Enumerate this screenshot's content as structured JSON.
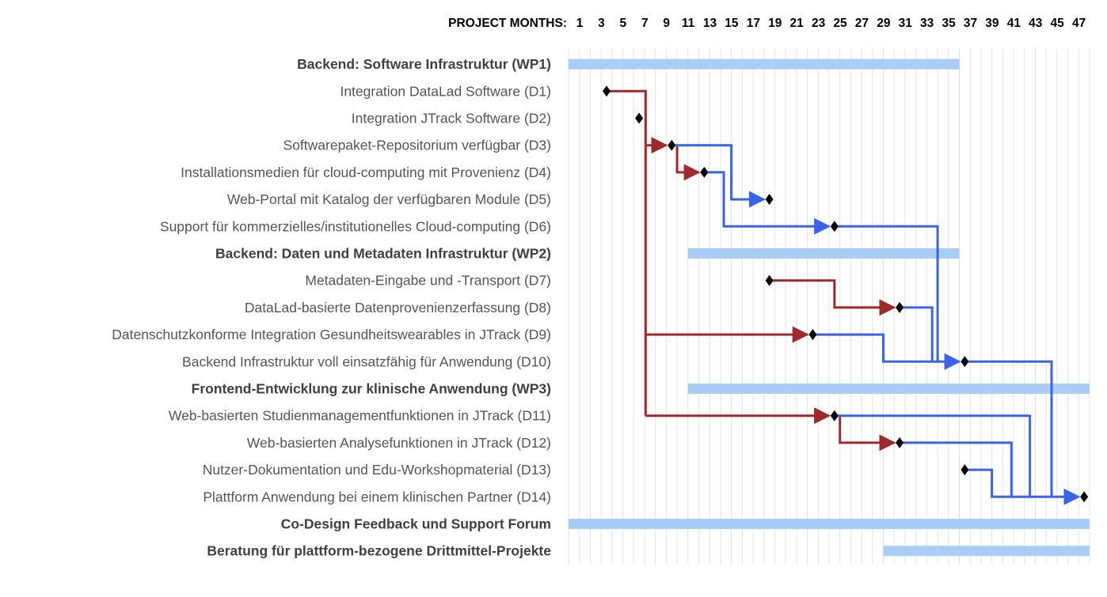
{
  "chart_data": {
    "type": "gantt",
    "axis_label": "PROJECT MONTHS:",
    "axis_ticks": [
      "1",
      "3",
      "5",
      "7",
      "9",
      "11",
      "13",
      "15",
      "17",
      "19",
      "21",
      "23",
      "25",
      "27",
      "29",
      "31",
      "33",
      "35",
      "37",
      "39",
      "41",
      "43",
      "45",
      "47"
    ],
    "month_range": [
      1,
      48
    ],
    "grid": true,
    "rows": [
      {
        "label": "Backend: Software Infrastruktur (WP1)",
        "bold": true
      },
      {
        "label": "Integration DataLad Software (D1)",
        "bold": false
      },
      {
        "label": "Integration JTrack Software (D2)",
        "bold": false
      },
      {
        "label": "Softwarepaket-Repositorium verfügbar (D3)",
        "bold": false
      },
      {
        "label": "Installationsmedien für cloud-computing mit Provenienz (D4)",
        "bold": false
      },
      {
        "label": "Web-Portal mit Katalog der verfügbaren Module (D5)",
        "bold": false
      },
      {
        "label": "Support für kommerzielles/institutionelles Cloud-computing (D6)",
        "bold": false
      },
      {
        "label": "Backend: Daten und Metadaten Infrastruktur (WP2)",
        "bold": true
      },
      {
        "label": "Metadaten-Eingabe und -Transport (D7)",
        "bold": false
      },
      {
        "label": "DataLad-basierte Datenprovenienzerfassung (D8)",
        "bold": false
      },
      {
        "label": "Datenschutzkonforme Integration Gesundheitswearables in JTrack (D9)",
        "bold": false
      },
      {
        "label": "Backend Infrastruktur voll einsatzfähig für Anwendung (D10)",
        "bold": false
      },
      {
        "label": "Frontend-Entwicklung zur klinische Anwendung (WP3)",
        "bold": true
      },
      {
        "label": "Web-basierten Studienmanagementfunktionen in JTrack (D11)",
        "bold": false
      },
      {
        "label": "Web-basierten Analysefunktionen in JTrack (D12)",
        "bold": false
      },
      {
        "label": "Nutzer-Dokumentation und Edu-Workshopmaterial (D13)",
        "bold": false
      },
      {
        "label": "Plattform Anwendung bei einem klinischen Partner (D14)",
        "bold": false
      },
      {
        "label": "Co-Design Feedback und Support Forum",
        "bold": true
      },
      {
        "label": "Beratung für plattform-bezogene Drittmittel-Projekte",
        "bold": true
      }
    ],
    "bars": [
      {
        "row": 0,
        "start": 1,
        "end": 36
      },
      {
        "row": 7,
        "start": 12,
        "end": 36
      },
      {
        "row": 12,
        "start": 12,
        "end": 48
      },
      {
        "row": 17,
        "start": 1,
        "end": 48
      },
      {
        "row": 18,
        "start": 30,
        "end": 48
      }
    ],
    "milestones": [
      {
        "row": 1,
        "month": 4
      },
      {
        "row": 2,
        "month": 7
      },
      {
        "row": 3,
        "month": 10
      },
      {
        "row": 4,
        "month": 13
      },
      {
        "row": 5,
        "month": 19
      },
      {
        "row": 6,
        "month": 25
      },
      {
        "row": 8,
        "month": 19
      },
      {
        "row": 9,
        "month": 31
      },
      {
        "row": 10,
        "month": 23
      },
      {
        "row": 11,
        "month": 37
      },
      {
        "row": 13,
        "month": 25
      },
      {
        "row": 14,
        "month": 31
      },
      {
        "row": 15,
        "month": 37
      },
      {
        "row": 16,
        "month": 48
      }
    ],
    "dependencies": [
      {
        "color": "#9e2a2b",
        "points": [
          [
            4,
            1
          ],
          [
            7.6,
            1
          ],
          [
            7.6,
            3
          ]
        ],
        "arrow": false
      },
      {
        "color": "#9e2a2b",
        "points": [
          [
            7.6,
            3
          ],
          [
            9.5,
            3
          ]
        ],
        "arrow": true
      },
      {
        "color": "#9e2a2b",
        "points": [
          [
            10.5,
            3
          ],
          [
            10.5,
            4
          ],
          [
            12.5,
            4
          ]
        ],
        "arrow": true
      },
      {
        "color": "#9e2a2b",
        "points": [
          [
            7.6,
            3
          ],
          [
            7.6,
            13
          ]
        ],
        "arrow": false
      },
      {
        "color": "#9e2a2b",
        "points": [
          [
            7.6,
            10
          ],
          [
            22.5,
            10
          ]
        ],
        "arrow": true
      },
      {
        "color": "#9e2a2b",
        "points": [
          [
            7.6,
            13
          ],
          [
            24.5,
            13
          ]
        ],
        "arrow": true
      },
      {
        "color": "#9e2a2b",
        "points": [
          [
            19,
            8
          ],
          [
            25,
            8
          ],
          [
            25,
            9
          ],
          [
            30.5,
            9
          ]
        ],
        "arrow": true
      },
      {
        "color": "#9e2a2b",
        "points": [
          [
            25.5,
            13
          ],
          [
            25.5,
            14
          ],
          [
            30.5,
            14
          ]
        ],
        "arrow": true
      },
      {
        "color": "#3b62e8",
        "points": [
          [
            10,
            3
          ],
          [
            15.5,
            3
          ],
          [
            15.5,
            5
          ],
          [
            18.5,
            5
          ]
        ],
        "arrow": true
      },
      {
        "color": "#3b62e8",
        "points": [
          [
            13,
            4
          ],
          [
            14.8,
            4
          ],
          [
            14.8,
            6
          ],
          [
            24.5,
            6
          ]
        ],
        "arrow": true
      },
      {
        "color": "#3b62e8",
        "points": [
          [
            25,
            6
          ],
          [
            34.5,
            6
          ],
          [
            34.5,
            11
          ]
        ],
        "arrow": false
      },
      {
        "color": "#3b62e8",
        "points": [
          [
            31,
            9
          ],
          [
            34,
            9
          ],
          [
            34,
            11
          ]
        ],
        "arrow": false
      },
      {
        "color": "#3b62e8",
        "points": [
          [
            23,
            10
          ],
          [
            29.5,
            10
          ],
          [
            29.5,
            11
          ],
          [
            36.5,
            11
          ]
        ],
        "arrow": true
      },
      {
        "color": "#3b62e8",
        "points": [
          [
            37,
            11
          ],
          [
            45,
            11
          ],
          [
            45,
            16
          ]
        ],
        "arrow": false
      },
      {
        "color": "#3b62e8",
        "points": [
          [
            25,
            13
          ],
          [
            43,
            13
          ],
          [
            43,
            16
          ]
        ],
        "arrow": false
      },
      {
        "color": "#3b62e8",
        "points": [
          [
            31,
            14
          ],
          [
            41.3,
            14
          ],
          [
            41.3,
            16
          ]
        ],
        "arrow": false
      },
      {
        "color": "#3b62e8",
        "points": [
          [
            37,
            15
          ],
          [
            39.5,
            15
          ],
          [
            39.5,
            16
          ],
          [
            47.5,
            16
          ]
        ],
        "arrow": true
      }
    ],
    "colors": {
      "bar": "#a8cdf6",
      "grid": "#e3e3e3",
      "red_link": "#9e2a2b",
      "blue_link": "#3b62e8",
      "milestone": "#000000"
    }
  }
}
